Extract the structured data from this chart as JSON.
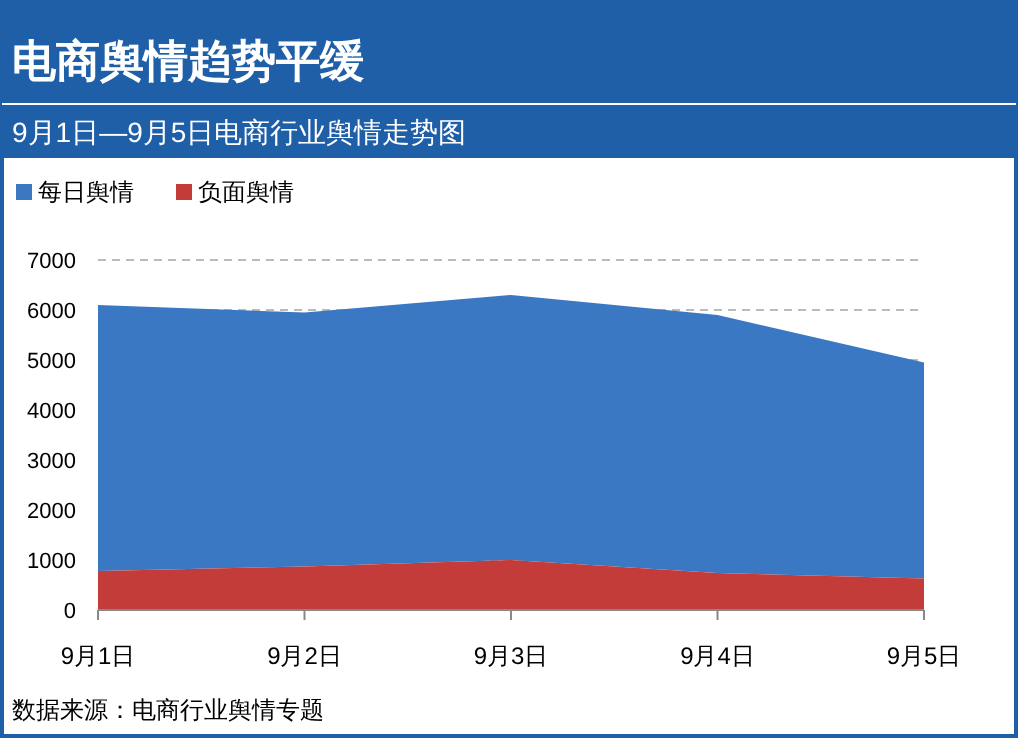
{
  "chart_data": {
    "type": "area",
    "title": "电商舆情趋势平缓",
    "subtitle": "9月1日—9月5日电商行业舆情走势图",
    "categories": [
      "9月1日",
      "9月2日",
      "9月3日",
      "9月4日",
      "9月5日"
    ],
    "series": [
      {
        "name": "每日舆情",
        "color": "#3a78c4",
        "values": [
          6100,
          5950,
          6300,
          5900,
          4950
        ]
      },
      {
        "name": "负面舆情",
        "color": "#c43c3a",
        "values": [
          780,
          870,
          1000,
          740,
          630
        ]
      }
    ],
    "ylim": [
      0,
      7000
    ],
    "yticks": [
      0,
      1000,
      2000,
      3000,
      4000,
      5000,
      6000,
      7000
    ],
    "grid": "y",
    "legend": "top left",
    "annotations": [
      "数据来源：电商行业舆情专题"
    ]
  }
}
